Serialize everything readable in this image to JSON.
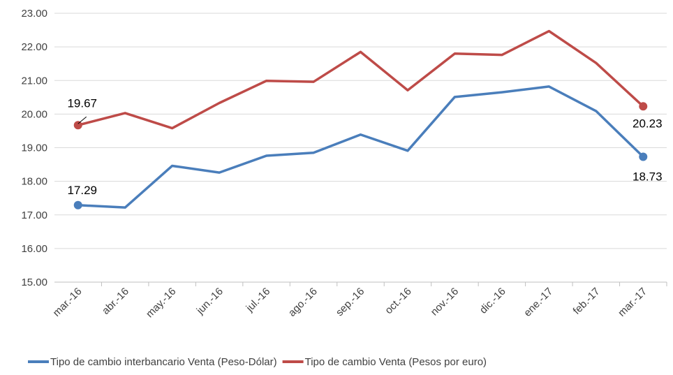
{
  "chart_data": {
    "type": "line",
    "categories": [
      "mar.-16",
      "abr.-16",
      "may.-16",
      "jun.-16",
      "jul.-16",
      "ago.-16",
      "sep.-16",
      "oct.-16",
      "nov.-16",
      "dic.-16",
      "ene.-17",
      "feb.-17",
      "mar.-17"
    ],
    "series": [
      {
        "name": "Tipo de cambio interbancario Venta (Peso-Dólar)",
        "color": "#4a7ebb",
        "values": [
          17.29,
          17.22,
          18.46,
          18.26,
          18.76,
          18.85,
          19.39,
          18.91,
          20.51,
          20.65,
          20.82,
          20.09,
          18.73
        ],
        "value_labels": [
          "17.29",
          null,
          null,
          null,
          null,
          null,
          null,
          null,
          null,
          null,
          null,
          null,
          "18.73"
        ]
      },
      {
        "name": "Tipo de cambio Venta (Pesos por euro)",
        "color": "#be4b48",
        "values": [
          19.67,
          20.03,
          19.58,
          20.33,
          20.99,
          20.96,
          21.85,
          20.71,
          21.8,
          21.76,
          22.47,
          21.52,
          20.23
        ],
        "value_labels": [
          "19.67",
          null,
          null,
          null,
          null,
          null,
          null,
          null,
          null,
          null,
          null,
          null,
          "20.23"
        ]
      }
    ],
    "ylim": [
      15,
      23
    ],
    "yticks": [
      {
        "value": 15,
        "label": "15.00"
      },
      {
        "value": 16,
        "label": "16.00"
      },
      {
        "value": 17,
        "label": "17.00"
      },
      {
        "value": 18,
        "label": "18.00"
      },
      {
        "value": 19,
        "label": "19.00"
      },
      {
        "value": 20,
        "label": "20.00"
      },
      {
        "value": 21,
        "label": "21.00"
      },
      {
        "value": 22,
        "label": "22.00"
      },
      {
        "value": 23,
        "label": "23.00"
      }
    ],
    "grid": true,
    "legend": "bottom"
  }
}
